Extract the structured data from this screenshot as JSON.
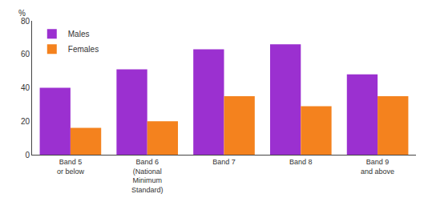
{
  "chart_data": {
    "type": "bar",
    "categories": [
      "Band 5\nor below",
      "Band 6\n(National\nMinimum\nStandard)",
      "Band 7",
      "Band 8",
      "Band 9\nand above"
    ],
    "series": [
      {
        "name": "Males",
        "color": "#9B30D0",
        "values": [
          40,
          51,
          63,
          66,
          48
        ]
      },
      {
        "name": "Females",
        "color": "#F4821E",
        "values": [
          16,
          20,
          35,
          29,
          35
        ]
      }
    ],
    "ylabel": "%",
    "ylim": [
      0,
      80
    ],
    "yticks": [
      0,
      20,
      40,
      60,
      80
    ],
    "grid": false,
    "legend": "upper left"
  }
}
